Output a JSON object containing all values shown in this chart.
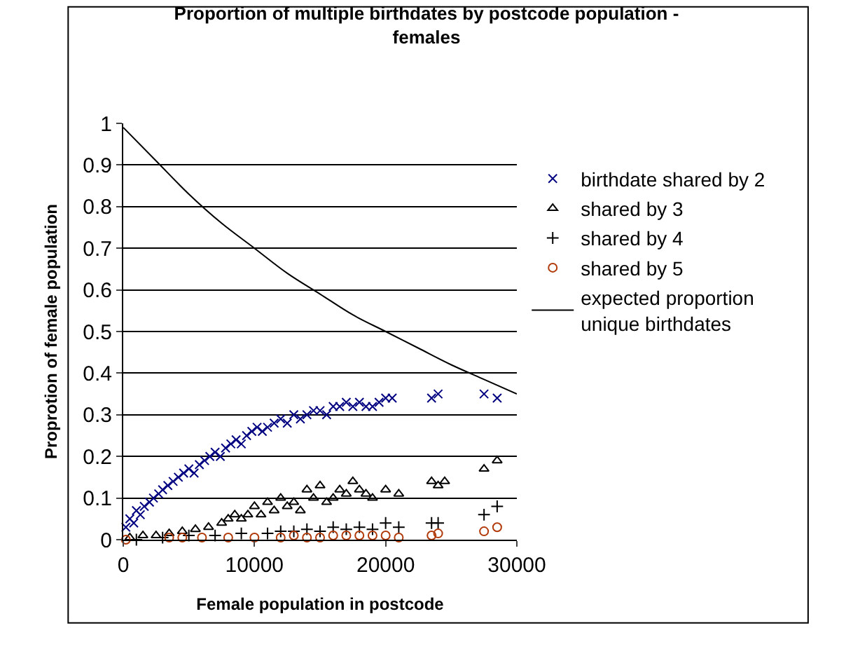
{
  "chart_data": {
    "type": "scatter",
    "title": "Proportion of multiple birthdates by postcode population -\nfemales",
    "xlabel": "Female population in postcode",
    "ylabel": "Proprotion of female population",
    "xlim": [
      0,
      30000
    ],
    "xticks": [
      0,
      10000,
      20000,
      30000
    ],
    "ylim": [
      0,
      1
    ],
    "yticks": [
      0,
      0.1,
      0.2,
      0.3,
      0.4,
      0.5,
      0.6,
      0.7,
      0.8,
      0.9,
      1
    ],
    "grid": "y",
    "legend": "right",
    "series": [
      {
        "name": "birthdate shared by 2",
        "color": "#000080",
        "marker": "cross",
        "x": [
          200,
          500,
          800,
          1000,
          1300,
          1600,
          2000,
          2300,
          2700,
          3000,
          3400,
          3800,
          4200,
          4600,
          5000,
          5400,
          5800,
          6200,
          6600,
          7000,
          7400,
          7800,
          8200,
          8600,
          9000,
          9400,
          9800,
          10200,
          10600,
          11000,
          11500,
          12000,
          12500,
          13000,
          13500,
          14000,
          14500,
          15000,
          15500,
          16000,
          16500,
          17000,
          17500,
          18000,
          18500,
          19000,
          19500,
          20000,
          20500,
          23500,
          24000,
          27500,
          28500
        ],
        "values": [
          0.03,
          0.05,
          0.04,
          0.07,
          0.06,
          0.08,
          0.09,
          0.1,
          0.11,
          0.12,
          0.13,
          0.14,
          0.15,
          0.16,
          0.17,
          0.16,
          0.18,
          0.19,
          0.2,
          0.21,
          0.2,
          0.22,
          0.23,
          0.24,
          0.23,
          0.25,
          0.26,
          0.27,
          0.26,
          0.27,
          0.28,
          0.29,
          0.28,
          0.3,
          0.29,
          0.3,
          0.31,
          0.31,
          0.3,
          0.32,
          0.32,
          0.33,
          0.32,
          0.33,
          0.32,
          0.32,
          0.33,
          0.34,
          0.34,
          0.34,
          0.35,
          0.35,
          0.34
        ]
      },
      {
        "name": "shared by 3",
        "color": "#000000",
        "marker": "triangle",
        "x": [
          500,
          1500,
          2500,
          3500,
          4500,
          5500,
          6500,
          7500,
          8000,
          8500,
          9000,
          9500,
          10000,
          10500,
          11000,
          11500,
          12000,
          12500,
          13000,
          13500,
          14000,
          14500,
          15000,
          15500,
          16000,
          16500,
          17000,
          17500,
          18000,
          18500,
          19000,
          20000,
          21000,
          23500,
          24000,
          24500,
          27500,
          28500
        ],
        "values": [
          0.005,
          0.01,
          0.01,
          0.015,
          0.02,
          0.025,
          0.03,
          0.04,
          0.05,
          0.06,
          0.05,
          0.06,
          0.08,
          0.06,
          0.09,
          0.07,
          0.1,
          0.08,
          0.09,
          0.07,
          0.12,
          0.1,
          0.13,
          0.09,
          0.1,
          0.12,
          0.11,
          0.14,
          0.12,
          0.11,
          0.1,
          0.12,
          0.11,
          0.14,
          0.13,
          0.14,
          0.17,
          0.19
        ]
      },
      {
        "name": "shared by 4",
        "color": "#000000",
        "marker": "plus",
        "x": [
          1000,
          3000,
          5000,
          7000,
          9000,
          11000,
          12000,
          13000,
          14000,
          15000,
          16000,
          17000,
          18000,
          19000,
          20000,
          21000,
          23500,
          24000,
          27500,
          28500
        ],
        "values": [
          0,
          0.005,
          0.01,
          0.01,
          0.015,
          0.015,
          0.02,
          0.02,
          0.025,
          0.02,
          0.03,
          0.025,
          0.03,
          0.025,
          0.04,
          0.03,
          0.04,
          0.04,
          0.06,
          0.08
        ]
      },
      {
        "name": "shared by 5",
        "color": "#b03a0a",
        "marker": "circle",
        "x": [
          200,
          3500,
          4500,
          6000,
          8000,
          10000,
          12000,
          13000,
          14000,
          15000,
          16000,
          17000,
          18000,
          19000,
          20000,
          21000,
          23500,
          24000,
          27500,
          28500
        ],
        "values": [
          0,
          0.005,
          0.005,
          0.005,
          0.005,
          0.005,
          0.005,
          0.01,
          0.005,
          0.005,
          0.01,
          0.01,
          0.01,
          0.01,
          0.01,
          0.005,
          0.01,
          0.015,
          0.02,
          0.03
        ]
      },
      {
        "name": "expected proportion\nunique birthdates",
        "color": "#000000",
        "type": "line",
        "marker": "none",
        "line_style": "solid",
        "x": [
          0,
          2500,
          5000,
          7500,
          10000,
          12500,
          15000,
          17500,
          20000,
          22500,
          25000,
          27500,
          30000
        ],
        "values": [
          0.99,
          0.91,
          0.83,
          0.76,
          0.7,
          0.64,
          0.59,
          0.54,
          0.5,
          0.46,
          0.42,
          0.385,
          0.35
        ]
      }
    ]
  }
}
